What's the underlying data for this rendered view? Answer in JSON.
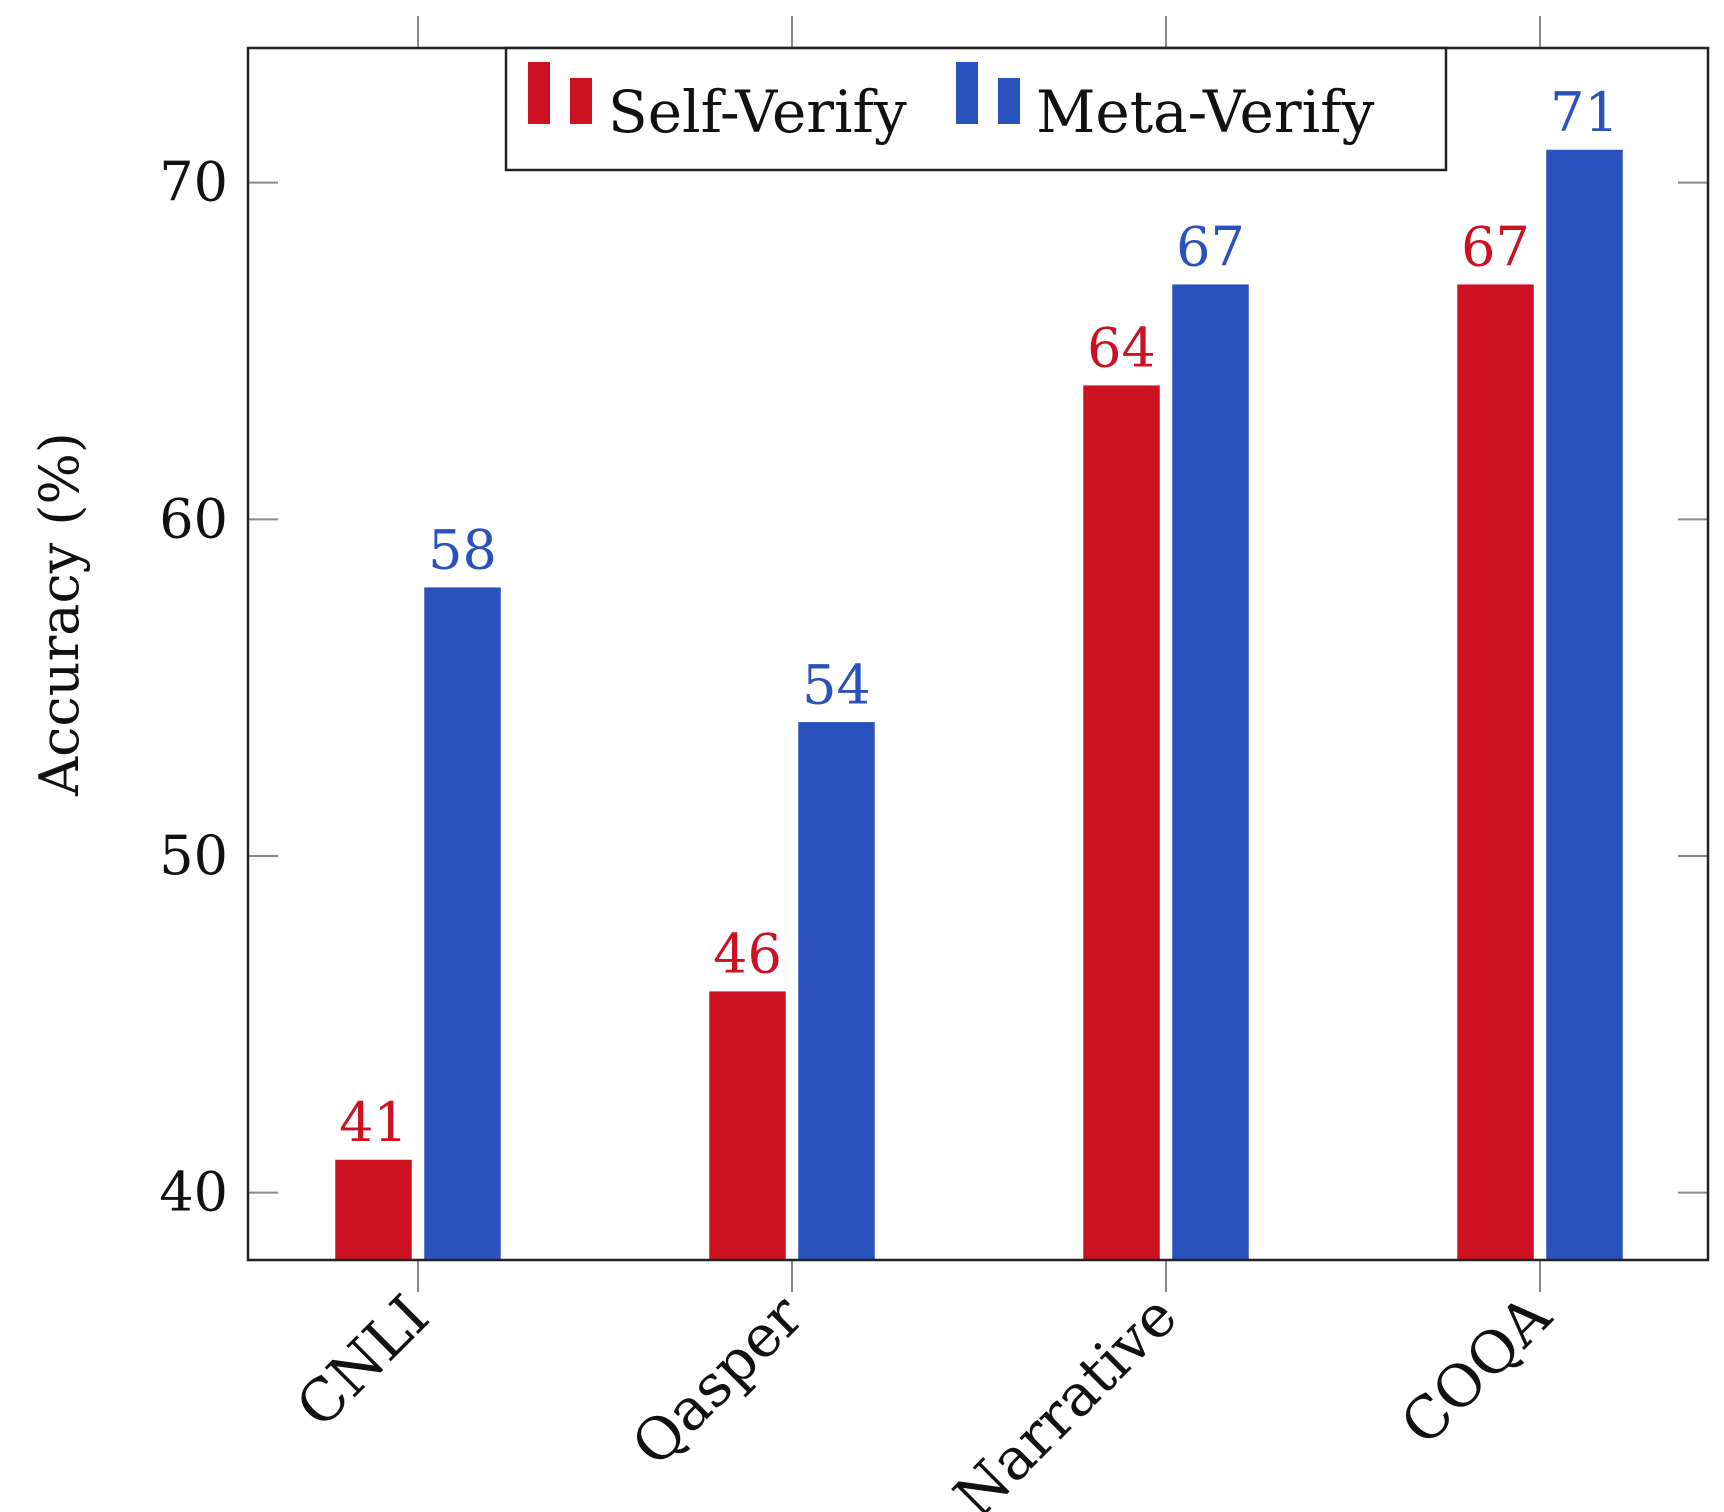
{
  "chart_data": {
    "type": "bar",
    "categories": [
      "CNLI",
      "Qasper",
      "Narrative",
      "COQA"
    ],
    "series": [
      {
        "name": "Self-Verify",
        "values": [
          41,
          46,
          64,
          67
        ],
        "color": "#cc1122"
      },
      {
        "name": "Meta-Verify",
        "values": [
          58,
          54,
          67,
          71
        ],
        "color": "#2a52be"
      }
    ],
    "ylabel": "Accuracy (%)",
    "xlabel": "",
    "ylim": [
      38,
      74
    ],
    "yticks": [
      40,
      50,
      60,
      70
    ],
    "legend_position": "top-center",
    "grid": false
  }
}
